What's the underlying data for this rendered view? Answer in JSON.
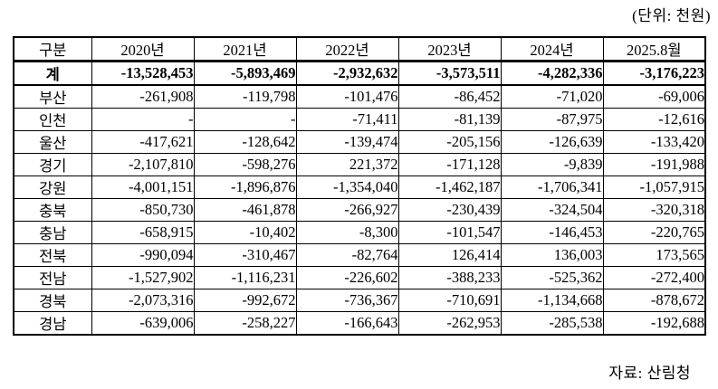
{
  "unit_label": "(단위: 천원)",
  "source_label": "자료: 산림청",
  "table": {
    "headers": [
      "구분",
      "2020년",
      "2021년",
      "2022년",
      "2023년",
      "2024년",
      "2025.8월"
    ],
    "total_row": {
      "label": "계",
      "values": [
        "-13,528,453",
        "-5,893,469",
        "-2,932,632",
        "-3,573,511",
        "-4,282,336",
        "-3,176,223"
      ]
    },
    "rows": [
      {
        "label": "부산",
        "values": [
          "-261,908",
          "-119,798",
          "-101,476",
          "-86,452",
          "-71,020",
          "-69,006"
        ]
      },
      {
        "label": "인천",
        "values": [
          "-",
          "-",
          "-71,411",
          "-81,139",
          "-87,975",
          "-12,616"
        ]
      },
      {
        "label": "울산",
        "values": [
          "-417,621",
          "-128,642",
          "-139,474",
          "-205,156",
          "-126,639",
          "-133,420"
        ]
      },
      {
        "label": "경기",
        "values": [
          "-2,107,810",
          "-598,276",
          "221,372",
          "-171,128",
          "-9,839",
          "-191,988"
        ]
      },
      {
        "label": "강원",
        "values": [
          "-4,001,151",
          "-1,896,876",
          "-1,354,040",
          "-1,462,187",
          "-1,706,341",
          "-1,057,915"
        ]
      },
      {
        "label": "충북",
        "values": [
          "-850,730",
          "-461,878",
          "-266,927",
          "-230,439",
          "-324,504",
          "-320,318"
        ]
      },
      {
        "label": "충남",
        "values": [
          "-658,915",
          "-10,402",
          "-8,300",
          "-101,547",
          "-146,453",
          "-220,765"
        ]
      },
      {
        "label": "전북",
        "values": [
          "-990,094",
          "-310,467",
          "-82,764",
          "126,414",
          "136,003",
          "173,565"
        ]
      },
      {
        "label": "전남",
        "values": [
          "-1,527,902",
          "-1,116,231",
          "-226,602",
          "-388,233",
          "-525,362",
          "-272,400"
        ]
      },
      {
        "label": "경북",
        "values": [
          "-2,073,316",
          "-992,672",
          "-736,367",
          "-710,691",
          "-1,134,668",
          "-878,672"
        ]
      },
      {
        "label": "경남",
        "values": [
          "-639,006",
          "-258,227",
          "-166,643",
          "-262,953",
          "-285,538",
          "-192,688"
        ]
      }
    ]
  }
}
